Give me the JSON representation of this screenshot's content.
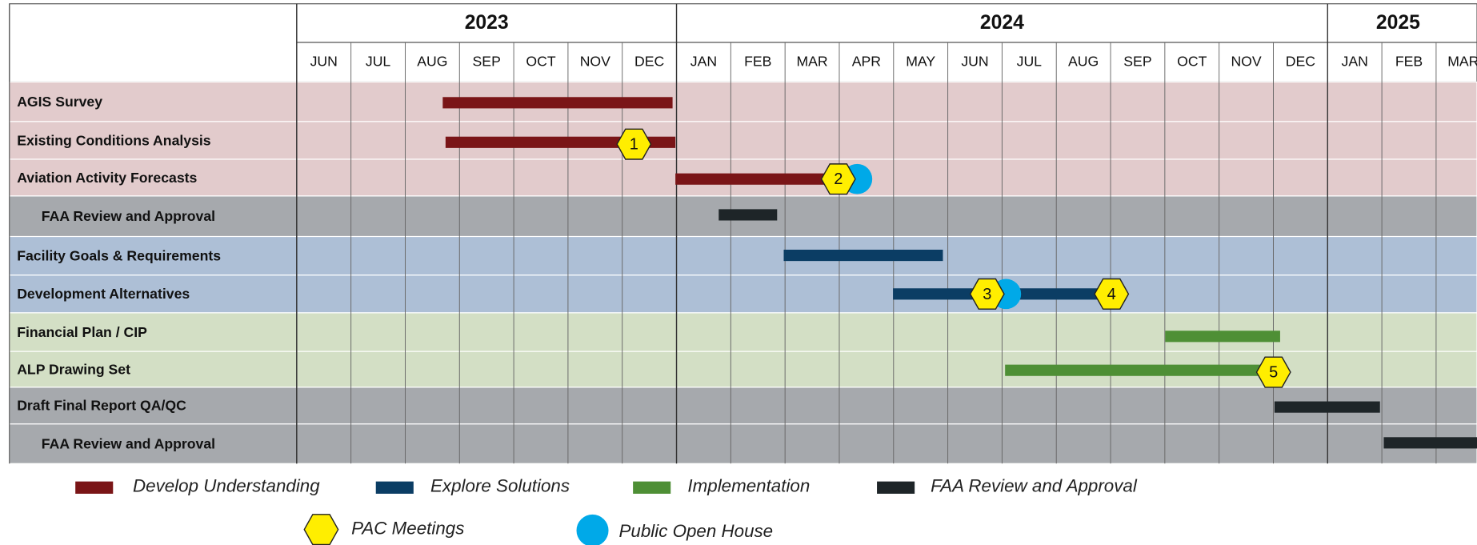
{
  "years": [
    "2023",
    "2024",
    "2025"
  ],
  "months": [
    "JUN",
    "JUL",
    "AUG",
    "SEP",
    "OCT",
    "NOV",
    "DEC",
    "JAN",
    "FEB",
    "MAR",
    "APR",
    "MAY",
    "JUN",
    "JUL",
    "AUG",
    "SEP",
    "OCT",
    "NOV",
    "DEC",
    "JAN",
    "FEB",
    "MAR"
  ],
  "tasks": [
    "AGIS Survey",
    "Existing Conditions Analysis",
    "Aviation Activity Forecasts",
    "FAA Review and Approval",
    "Facility Goals & Requirements",
    "Development Alternatives",
    "Financial Plan / CIP",
    "ALP Drawing Set",
    "Draft Final Report QA/QC",
    "FAA Review and Approval"
  ],
  "milestones": [
    "1",
    "2",
    "3",
    "4",
    "5"
  ],
  "legend": [
    "Develop Understanding",
    "Explore Solutions",
    "Implementation",
    "FAA Review and Approval",
    "PAC Meetings",
    "Public Open House"
  ]
}
